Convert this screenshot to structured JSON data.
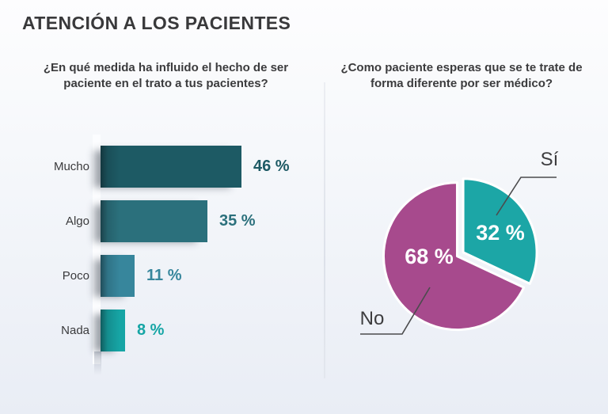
{
  "page": {
    "title": "ATENCIÓN A LOS PACIENTES"
  },
  "chart_data": [
    {
      "type": "bar",
      "orientation": "horizontal",
      "title": "¿En qué medida ha influido el hecho de ser paciente en el trato a tus pacientes?",
      "categories": [
        "Mucho",
        "Algo",
        "Poco",
        "Nada"
      ],
      "values": [
        46,
        35,
        11,
        8
      ],
      "value_labels": [
        "46 %",
        "35 %",
        "11 %",
        "8 %"
      ],
      "colors": [
        "#1d5a64",
        "#2b707c",
        "#37869c",
        "#16a5a5"
      ],
      "xlim": [
        0,
        50
      ],
      "grid": false,
      "legend": false
    },
    {
      "type": "pie",
      "title": "¿Como paciente esperas que se te trate de forma diferente por ser médico?",
      "start_angle_deg": 0,
      "direction": "clockwise",
      "slices": [
        {
          "label": "Sí",
          "value": 32,
          "value_label": "32 %",
          "color": "#1ca6a6",
          "explode": 6
        },
        {
          "label": "No",
          "value": 68,
          "value_label": "68 %",
          "color": "#a74a8d",
          "explode": 3
        }
      ],
      "legend": false
    }
  ]
}
